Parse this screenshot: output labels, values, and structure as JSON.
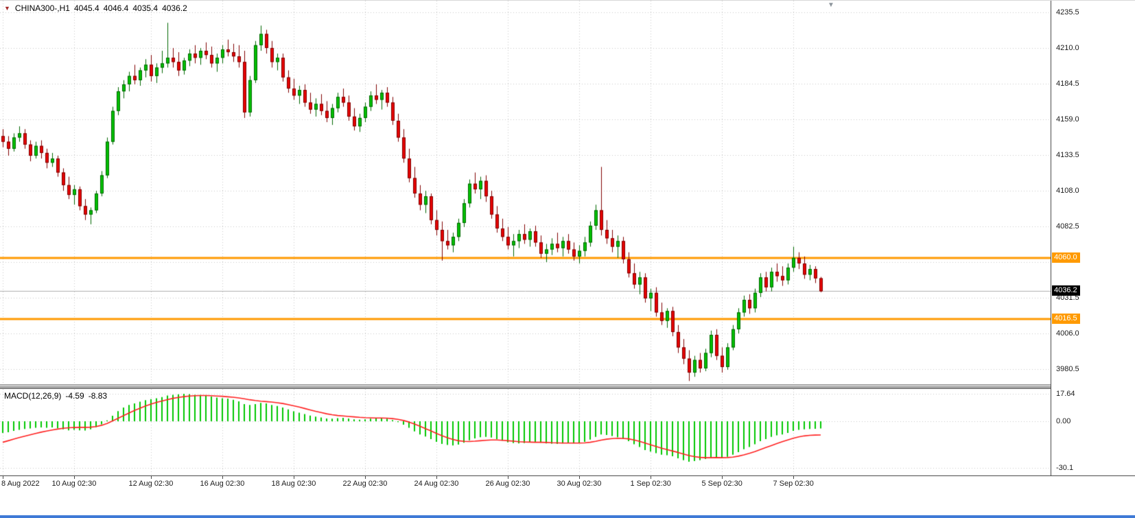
{
  "header": {
    "symbol_tf": "CHINA300-,H1",
    "open": "4045.4",
    "high": "4046.4",
    "low": "4035.4",
    "close": "4036.2"
  },
  "indicator": {
    "name": "MACD(12,26,9)",
    "macd_value": "-4.59",
    "signal_value": "-8.83"
  },
  "colors": {
    "up": "#00c000",
    "up_border": "#006600",
    "down": "#e60000",
    "down_border": "#7f0000",
    "grid": "#c8c8c8",
    "hline": "#ff9a00",
    "current_line": "#b0b0b0",
    "hist": "#00c800",
    "signal": "#ff2020",
    "current_box": "#000000"
  },
  "chart_data": {
    "type": "candlestick",
    "title": "CHINA300- H1 candlestick chart with MACD(12,26,9)",
    "symbol": "CHINA300-",
    "timeframe": "H1",
    "last_ohlc": {
      "open": 4045.4,
      "high": 4046.4,
      "low": 4035.4,
      "close": 4036.2
    },
    "price_axis": {
      "top": 4243.8,
      "bottom": 3969.7,
      "grid": [
        {
          "price": 4235.5,
          "label": "4235.5"
        },
        {
          "price": 4210.0,
          "label": "4210.0"
        },
        {
          "price": 4184.5,
          "label": "4184.5"
        },
        {
          "price": 4159.0,
          "label": "4159.0"
        },
        {
          "price": 4133.5,
          "label": "4133.5"
        },
        {
          "price": 4108.0,
          "label": "4108.0"
        },
        {
          "price": 4082.5,
          "label": "4082.5"
        },
        {
          "price": 4057.0,
          "label": ""
        },
        {
          "price": 4031.5,
          "label": "4031.5"
        },
        {
          "price": 4006.0,
          "label": "4006.0"
        },
        {
          "price": 3980.5,
          "label": "3980.5"
        }
      ]
    },
    "hlines": [
      {
        "price": 4060.0,
        "label": "4060.0"
      },
      {
        "price": 4016.5,
        "label": "4016.5"
      }
    ],
    "current_price": {
      "value": 4036.2,
      "label": "4036.2"
    },
    "time_axis": {
      "ticks": [
        {
          "bar": 0,
          "label": "8 Aug 2022"
        },
        {
          "bar": 13,
          "label": "10 Aug 02:30"
        },
        {
          "bar": 27,
          "label": "12 Aug 02:30"
        },
        {
          "bar": 40,
          "label": "16 Aug 02:30"
        },
        {
          "bar": 53,
          "label": "18 Aug 02:30"
        },
        {
          "bar": 66,
          "label": "22 Aug 02:30"
        },
        {
          "bar": 79,
          "label": "24 Aug 02:30"
        },
        {
          "bar": 92,
          "label": "26 Aug 02:30"
        },
        {
          "bar": 105,
          "label": "30 Aug 02:30"
        },
        {
          "bar": 118,
          "label": "1 Sep 02:30"
        },
        {
          "bar": 131,
          "label": "5 Sep 02:30"
        },
        {
          "bar": 144,
          "label": "7 Sep 02:30"
        }
      ]
    },
    "candles": [
      [
        4147,
        4152,
        4139,
        4143
      ],
      [
        4143,
        4147,
        4133,
        4138
      ],
      [
        4138,
        4149,
        4136,
        4146
      ],
      [
        4146,
        4154,
        4143,
        4149
      ],
      [
        4149,
        4152,
        4138,
        4141
      ],
      [
        4141,
        4144,
        4129,
        4133
      ],
      [
        4133,
        4143,
        4131,
        4140
      ],
      [
        4140,
        4144,
        4131,
        4135
      ],
      [
        4135,
        4138,
        4124,
        4128
      ],
      [
        4128,
        4135,
        4125,
        4131
      ],
      [
        4131,
        4133,
        4118,
        4121
      ],
      [
        4121,
        4124,
        4108,
        4112
      ],
      [
        4112,
        4118,
        4102,
        4105
      ],
      [
        4105,
        4112,
        4098,
        4109
      ],
      [
        4109,
        4111,
        4094,
        4097
      ],
      [
        4097,
        4102,
        4087,
        4091
      ],
      [
        4091,
        4096,
        4084,
        4094
      ],
      [
        4094,
        4108,
        4092,
        4106
      ],
      [
        4106,
        4122,
        4104,
        4119
      ],
      [
        4119,
        4146,
        4117,
        4143
      ],
      [
        4143,
        4168,
        4141,
        4165
      ],
      [
        4165,
        4182,
        4162,
        4179
      ],
      [
        4179,
        4187,
        4174,
        4184
      ],
      [
        4184,
        4193,
        4179,
        4190
      ],
      [
        4190,
        4198,
        4184,
        4187
      ],
      [
        4187,
        4196,
        4183,
        4194
      ],
      [
        4194,
        4202,
        4189,
        4198
      ],
      [
        4198,
        4205,
        4186,
        4190
      ],
      [
        4190,
        4199,
        4185,
        4196
      ],
      [
        4196,
        4208,
        4192,
        4199
      ],
      [
        4199,
        4228,
        4196,
        4203
      ],
      [
        4203,
        4210,
        4196,
        4200
      ],
      [
        4200,
        4207,
        4190,
        4194
      ],
      [
        4194,
        4203,
        4191,
        4201
      ],
      [
        4201,
        4209,
        4197,
        4206
      ],
      [
        4206,
        4212,
        4199,
        4203
      ],
      [
        4203,
        4210,
        4198,
        4208
      ],
      [
        4208,
        4214,
        4202,
        4205
      ],
      [
        4205,
        4211,
        4196,
        4199
      ],
      [
        4199,
        4206,
        4193,
        4203
      ],
      [
        4203,
        4212,
        4199,
        4209
      ],
      [
        4209,
        4216,
        4204,
        4207
      ],
      [
        4207,
        4213,
        4200,
        4204
      ],
      [
        4204,
        4212,
        4196,
        4200
      ],
      [
        4200,
        4208,
        4160,
        4164
      ],
      [
        4164,
        4190,
        4161,
        4187
      ],
      [
        4187,
        4215,
        4185,
        4212
      ],
      [
        4212,
        4226,
        4208,
        4220
      ],
      [
        4220,
        4223,
        4206,
        4210
      ],
      [
        4210,
        4215,
        4196,
        4200
      ],
      [
        4200,
        4206,
        4194,
        4203
      ],
      [
        4203,
        4206,
        4186,
        4189
      ],
      [
        4189,
        4194,
        4178,
        4181
      ],
      [
        4181,
        4188,
        4173,
        4176
      ],
      [
        4176,
        4183,
        4170,
        4180
      ],
      [
        4180,
        4184,
        4168,
        4171
      ],
      [
        4171,
        4178,
        4163,
        4166
      ],
      [
        4166,
        4174,
        4161,
        4170
      ],
      [
        4170,
        4177,
        4162,
        4165
      ],
      [
        4165,
        4172,
        4157,
        4160
      ],
      [
        4160,
        4170,
        4155,
        4167
      ],
      [
        4167,
        4178,
        4164,
        4175
      ],
      [
        4175,
        4181,
        4168,
        4171
      ],
      [
        4171,
        4176,
        4158,
        4161
      ],
      [
        4161,
        4167,
        4151,
        4154
      ],
      [
        4154,
        4163,
        4150,
        4160
      ],
      [
        4160,
        4171,
        4157,
        4168
      ],
      [
        4168,
        4179,
        4165,
        4176
      ],
      [
        4176,
        4184,
        4170,
        4173
      ],
      [
        4173,
        4180,
        4166,
        4178
      ],
      [
        4178,
        4182,
        4168,
        4171
      ],
      [
        4171,
        4175,
        4155,
        4158
      ],
      [
        4158,
        4163,
        4143,
        4146
      ],
      [
        4146,
        4152,
        4128,
        4131
      ],
      [
        4131,
        4138,
        4114,
        4117
      ],
      [
        4117,
        4125,
        4103,
        4106
      ],
      [
        4106,
        4112,
        4094,
        4098
      ],
      [
        4098,
        4108,
        4092,
        4104
      ],
      [
        4104,
        4106,
        4084,
        4087
      ],
      [
        4087,
        4094,
        4076,
        4080
      ],
      [
        4080,
        4086,
        4058,
        4072
      ],
      [
        4072,
        4080,
        4066,
        4069
      ],
      [
        4069,
        4078,
        4064,
        4075
      ],
      [
        4075,
        4088,
        4072,
        4085
      ],
      [
        4085,
        4102,
        4082,
        4099
      ],
      [
        4099,
        4116,
        4096,
        4113
      ],
      [
        4113,
        4121,
        4106,
        4109
      ],
      [
        4109,
        4118,
        4102,
        4115
      ],
      [
        4115,
        4119,
        4100,
        4104
      ],
      [
        4104,
        4108,
        4088,
        4091
      ],
      [
        4091,
        4097,
        4078,
        4081
      ],
      [
        4081,
        4088,
        4072,
        4075
      ],
      [
        4075,
        4082,
        4066,
        4069
      ],
      [
        4069,
        4077,
        4061,
        4072
      ],
      [
        4072,
        4080,
        4067,
        4077
      ],
      [
        4077,
        4084,
        4070,
        4073
      ],
      [
        4073,
        4081,
        4068,
        4079
      ],
      [
        4079,
        4083,
        4068,
        4071
      ],
      [
        4071,
        4076,
        4060,
        4063
      ],
      [
        4063,
        4070,
        4057,
        4066
      ],
      [
        4066,
        4074,
        4062,
        4070
      ],
      [
        4070,
        4078,
        4064,
        4067
      ],
      [
        4067,
        4075,
        4061,
        4072
      ],
      [
        4072,
        4077,
        4063,
        4066
      ],
      [
        4066,
        4071,
        4058,
        4061
      ],
      [
        4061,
        4069,
        4056,
        4065
      ],
      [
        4065,
        4075,
        4061,
        4071
      ],
      [
        4071,
        4086,
        4068,
        4083
      ],
      [
        4083,
        4098,
        4080,
        4094
      ],
      [
        4094,
        4125,
        4076,
        4080
      ],
      [
        4080,
        4087,
        4070,
        4074
      ],
      [
        4074,
        4080,
        4064,
        4068
      ],
      [
        4068,
        4076,
        4060,
        4072
      ],
      [
        4072,
        4075,
        4056,
        4059
      ],
      [
        4059,
        4064,
        4046,
        4049
      ],
      [
        4049,
        4056,
        4038,
        4041
      ],
      [
        4041,
        4050,
        4034,
        4046
      ],
      [
        4046,
        4049,
        4028,
        4031
      ],
      [
        4031,
        4038,
        4022,
        4035
      ],
      [
        4035,
        4039,
        4018,
        4021
      ],
      [
        4021,
        4028,
        4012,
        4015
      ],
      [
        4015,
        4024,
        4010,
        4022
      ],
      [
        4022,
        4025,
        4004,
        4007
      ],
      [
        4007,
        4012,
        3992,
        3996
      ],
      [
        3996,
        4002,
        3984,
        3988
      ],
      [
        3988,
        3994,
        3972,
        3978
      ],
      [
        3978,
        3990,
        3975,
        3987
      ],
      [
        3987,
        3992,
        3978,
        3981
      ],
      [
        3981,
        3995,
        3979,
        3992
      ],
      [
        3992,
        4008,
        3989,
        4005
      ],
      [
        4005,
        4009,
        3987,
        3990
      ],
      [
        3990,
        3996,
        3978,
        3982
      ],
      [
        3982,
        3999,
        3980,
        3996
      ],
      [
        3996,
        4012,
        3994,
        4009
      ],
      [
        4009,
        4024,
        4006,
        4021
      ],
      [
        4021,
        4033,
        4018,
        4030
      ],
      [
        4030,
        4034,
        4020,
        4024
      ],
      [
        4024,
        4038,
        4021,
        4035
      ],
      [
        4035,
        4049,
        4032,
        4046
      ],
      [
        4046,
        4050,
        4036,
        4039
      ],
      [
        4039,
        4053,
        4036,
        4050
      ],
      [
        4050,
        4056,
        4043,
        4047
      ],
      [
        4047,
        4054,
        4040,
        4044
      ],
      [
        4044,
        4056,
        4041,
        4053
      ],
      [
        4053,
        4068,
        4050,
        4060
      ],
      [
        4060,
        4064,
        4052,
        4056
      ],
      [
        4056,
        4061,
        4045,
        4048
      ],
      [
        4048,
        4055,
        4044,
        4052
      ],
      [
        4052,
        4054,
        4042,
        4045.4
      ],
      [
        4045.4,
        4046.4,
        4035.4,
        4036.2
      ]
    ],
    "macd_axis": {
      "top": 20.7,
      "bottom": -34.8,
      "labels": [
        {
          "value": 17.64,
          "text": "17.64"
        },
        {
          "value": 0,
          "text": "0.00"
        },
        {
          "value": -30.1,
          "text": "-30.1"
        }
      ]
    },
    "macd": {
      "hist": [
        -7.5,
        -7,
        -6.2,
        -5.5,
        -5,
        -4.6,
        -4.2,
        -4,
        -4.2,
        -4,
        -4.5,
        -5.2,
        -5.8,
        -5.5,
        -5.8,
        -6,
        -5.2,
        -3.8,
        -2,
        0.5,
        3.5,
        6.5,
        8.8,
        10.5,
        11.5,
        12.5,
        13.5,
        14.2,
        14.8,
        15.5,
        16.5,
        17,
        17.3,
        17.6,
        17.4,
        17,
        16.8,
        16.5,
        15.8,
        15.2,
        14.8,
        14.5,
        13.8,
        12.8,
        11,
        10.5,
        11,
        11.8,
        11.5,
        10.5,
        9.8,
        8.8,
        7.6,
        6.4,
        5.5,
        4.6,
        3.6,
        3,
        2.4,
        1.8,
        1.6,
        2,
        2.2,
        1.8,
        1.2,
        1,
        1.2,
        1.6,
        1.8,
        2,
        1.6,
        0.8,
        -0.5,
        -2.2,
        -4.2,
        -6.5,
        -8.5,
        -9.8,
        -11.5,
        -13.2,
        -14.5,
        -15.2,
        -15.5,
        -15,
        -13.8,
        -12.2,
        -11,
        -10.2,
        -10,
        -10.5,
        -11.5,
        -12.5,
        -13.5,
        -14,
        -14.2,
        -14,
        -13.6,
        -13.4,
        -13.8,
        -14.2,
        -14.4,
        -14.5,
        -14.2,
        -14,
        -14.2,
        -14,
        -13.2,
        -11.8,
        -10,
        -8.5,
        -8.8,
        -9.5,
        -10.2,
        -11.2,
        -12.8,
        -14.8,
        -16.5,
        -18.5,
        -19.5,
        -20.5,
        -21.5,
        -21.8,
        -22.5,
        -23.8,
        -25,
        -26,
        -25.5,
        -25,
        -24.2,
        -23.2,
        -23,
        -23.5,
        -22.8,
        -21.5,
        -19.8,
        -18,
        -16.5,
        -14.8,
        -12.8,
        -11.5,
        -10,
        -9,
        -8.5,
        -7.5,
        -6.2,
        -5.5,
        -5.2,
        -5,
        -4.8,
        -4.59
      ],
      "signal": [
        -13.5,
        -12.5,
        -11.5,
        -10.5,
        -9.6,
        -8.7,
        -7.8,
        -7,
        -6.3,
        -5.6,
        -5,
        -4.5,
        -4.2,
        -4,
        -3.9,
        -3.9,
        -3.8,
        -3.4,
        -2.6,
        -1.4,
        0.2,
        1.9,
        3.6,
        5.3,
        6.9,
        8.4,
        9.8,
        11,
        12.1,
        13,
        13.9,
        14.7,
        15.3,
        15.8,
        16.2,
        16.4,
        16.5,
        16.5,
        16.4,
        16.2,
        16,
        15.7,
        15.4,
        15,
        14.4,
        13.8,
        13.3,
        12.9,
        12.6,
        12.3,
        11.9,
        11.4,
        10.7,
        9.9,
        9.1,
        8.2,
        7.3,
        6.4,
        5.6,
        4.8,
        4.2,
        3.7,
        3.4,
        3.1,
        2.8,
        2.5,
        2.3,
        2.2,
        2.1,
        2.1,
        2,
        1.7,
        1.2,
        0.5,
        -0.5,
        -1.8,
        -3.2,
        -4.7,
        -6.2,
        -7.8,
        -9.3,
        -10.6,
        -11.7,
        -12.5,
        -12.9,
        -13,
        -12.8,
        -12.5,
        -12.2,
        -12,
        -12,
        -12.2,
        -12.5,
        -12.8,
        -13.1,
        -13.3,
        -13.4,
        -13.5,
        -13.5,
        -13.6,
        -13.8,
        -13.9,
        -14,
        -14,
        -14,
        -14,
        -13.9,
        -13.5,
        -12.9,
        -12.1,
        -11.5,
        -11.1,
        -10.9,
        -11,
        -11.3,
        -12,
        -12.9,
        -14,
        -15.1,
        -16.2,
        -17.3,
        -18.2,
        -19.1,
        -20,
        -21,
        -22,
        -22.7,
        -23.2,
        -23.4,
        -23.4,
        -23.3,
        -23.4,
        -23.3,
        -23,
        -22.4,
        -21.6,
        -20.6,
        -19.5,
        -18.2,
        -16.9,
        -15.6,
        -14.3,
        -13.1,
        -12,
        -10.9,
        -10,
        -9.4,
        -9,
        -8.85,
        -8.83
      ]
    }
  }
}
